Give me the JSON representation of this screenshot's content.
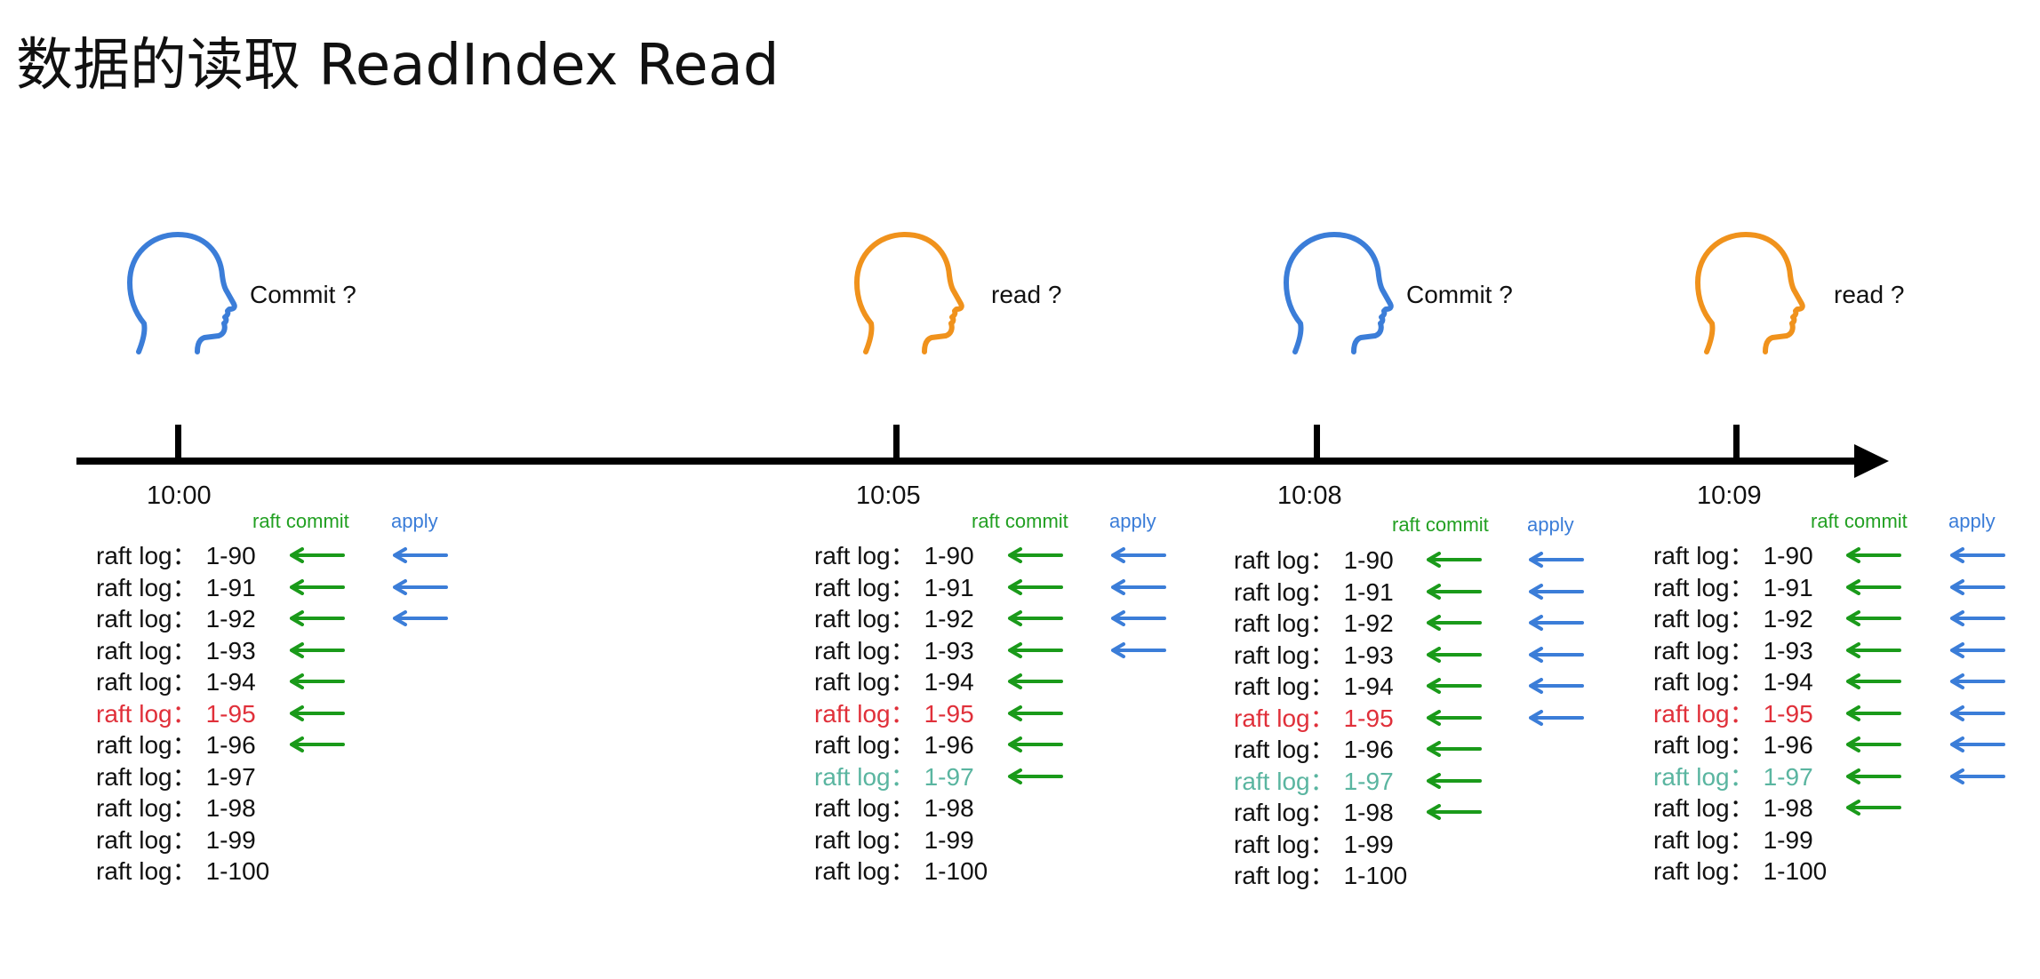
{
  "title": "数据的读取 ReadIndex Read",
  "colors": {
    "commit_arrow": "#1a9a1a",
    "apply_arrow": "#3b7dd8",
    "read_index_entry": "#e0303a",
    "highlight_entry": "#5ab5a0",
    "head_blue": "#3b7dd8",
    "head_orange": "#f0921c",
    "text": "#111111"
  },
  "columns": [
    {
      "time": "10:00",
      "actor_color": "blue",
      "question": "Commit ?",
      "commit_label": "raft commit",
      "apply_label": "apply",
      "logs": [
        {
          "label": "raft log：",
          "value": "1-90",
          "style": "normal",
          "committed": true,
          "applied": true
        },
        {
          "label": "raft log：",
          "value": "1-91",
          "style": "normal",
          "committed": true,
          "applied": true
        },
        {
          "label": "raft log：",
          "value": "1-92",
          "style": "normal",
          "committed": true,
          "applied": true
        },
        {
          "label": "raft log：",
          "value": "1-93",
          "style": "normal",
          "committed": true,
          "applied": false
        },
        {
          "label": "raft log：",
          "value": "1-94",
          "style": "normal",
          "committed": true,
          "applied": false
        },
        {
          "label": "raft log：",
          "value": "1-95",
          "style": "red",
          "committed": true,
          "applied": false
        },
        {
          "label": "raft log：",
          "value": "1-96",
          "style": "normal",
          "committed": true,
          "applied": false
        },
        {
          "label": "raft log：",
          "value": "1-97",
          "style": "normal",
          "committed": false,
          "applied": false
        },
        {
          "label": "raft log：",
          "value": "1-98",
          "style": "normal",
          "committed": false,
          "applied": false
        },
        {
          "label": "raft log：",
          "value": "1-99",
          "style": "normal",
          "committed": false,
          "applied": false
        },
        {
          "label": "raft log：",
          "value": "1-100",
          "style": "normal",
          "committed": false,
          "applied": false
        }
      ]
    },
    {
      "time": "10:05",
      "actor_color": "orange",
      "question": "read ?",
      "commit_label": "raft commit",
      "apply_label": "apply",
      "logs": [
        {
          "label": "raft log：",
          "value": "1-90",
          "style": "normal",
          "committed": true,
          "applied": true
        },
        {
          "label": "raft log：",
          "value": "1-91",
          "style": "normal",
          "committed": true,
          "applied": true
        },
        {
          "label": "raft log：",
          "value": "1-92",
          "style": "normal",
          "committed": true,
          "applied": true
        },
        {
          "label": "raft log：",
          "value": "1-93",
          "style": "normal",
          "committed": true,
          "applied": true
        },
        {
          "label": "raft log：",
          "value": "1-94",
          "style": "normal",
          "committed": true,
          "applied": false
        },
        {
          "label": "raft log：",
          "value": "1-95",
          "style": "red",
          "committed": true,
          "applied": false
        },
        {
          "label": "raft log：",
          "value": "1-96",
          "style": "normal",
          "committed": true,
          "applied": false
        },
        {
          "label": "raft log：",
          "value": "1-97",
          "style": "teal",
          "committed": true,
          "applied": false
        },
        {
          "label": "raft log：",
          "value": "1-98",
          "style": "normal",
          "committed": false,
          "applied": false
        },
        {
          "label": "raft log：",
          "value": "1-99",
          "style": "normal",
          "committed": false,
          "applied": false
        },
        {
          "label": "raft log：",
          "value": "1-100",
          "style": "normal",
          "committed": false,
          "applied": false
        }
      ]
    },
    {
      "time": "10:08",
      "actor_color": "blue",
      "question": "Commit ?",
      "commit_label": "raft commit",
      "apply_label": "apply",
      "logs": [
        {
          "label": "raft log：",
          "value": "1-90",
          "style": "normal",
          "committed": true,
          "applied": true
        },
        {
          "label": "raft log：",
          "value": "1-91",
          "style": "normal",
          "committed": true,
          "applied": true
        },
        {
          "label": "raft log：",
          "value": "1-92",
          "style": "normal",
          "committed": true,
          "applied": true
        },
        {
          "label": "raft log：",
          "value": "1-93",
          "style": "normal",
          "committed": true,
          "applied": true
        },
        {
          "label": "raft log：",
          "value": "1-94",
          "style": "normal",
          "committed": true,
          "applied": true
        },
        {
          "label": "raft log：",
          "value": "1-95",
          "style": "red",
          "committed": true,
          "applied": true
        },
        {
          "label": "raft log：",
          "value": "1-96",
          "style": "normal",
          "committed": true,
          "applied": false
        },
        {
          "label": "raft log：",
          "value": "1-97",
          "style": "teal",
          "committed": true,
          "applied": false
        },
        {
          "label": "raft log：",
          "value": "1-98",
          "style": "normal",
          "committed": true,
          "applied": false
        },
        {
          "label": "raft log：",
          "value": "1-99",
          "style": "normal",
          "committed": false,
          "applied": false
        },
        {
          "label": "raft log：",
          "value": "1-100",
          "style": "normal",
          "committed": false,
          "applied": false
        }
      ]
    },
    {
      "time": "10:09",
      "actor_color": "orange",
      "question": "read ?",
      "commit_label": "raft commit",
      "apply_label": "apply",
      "logs": [
        {
          "label": "raft log：",
          "value": "1-90",
          "style": "normal",
          "committed": true,
          "applied": true
        },
        {
          "label": "raft log：",
          "value": "1-91",
          "style": "normal",
          "committed": true,
          "applied": true
        },
        {
          "label": "raft log：",
          "value": "1-92",
          "style": "normal",
          "committed": true,
          "applied": true
        },
        {
          "label": "raft log：",
          "value": "1-93",
          "style": "normal",
          "committed": true,
          "applied": true
        },
        {
          "label": "raft log：",
          "value": "1-94",
          "style": "normal",
          "committed": true,
          "applied": true
        },
        {
          "label": "raft log：",
          "value": "1-95",
          "style": "red",
          "committed": true,
          "applied": true
        },
        {
          "label": "raft log：",
          "value": "1-96",
          "style": "normal",
          "committed": true,
          "applied": true
        },
        {
          "label": "raft log：",
          "value": "1-97",
          "style": "teal",
          "committed": true,
          "applied": true
        },
        {
          "label": "raft log：",
          "value": "1-98",
          "style": "normal",
          "committed": true,
          "applied": false
        },
        {
          "label": "raft log：",
          "value": "1-99",
          "style": "normal",
          "committed": false,
          "applied": false
        },
        {
          "label": "raft log：",
          "value": "1-100",
          "style": "normal",
          "committed": false,
          "applied": false
        }
      ]
    }
  ]
}
